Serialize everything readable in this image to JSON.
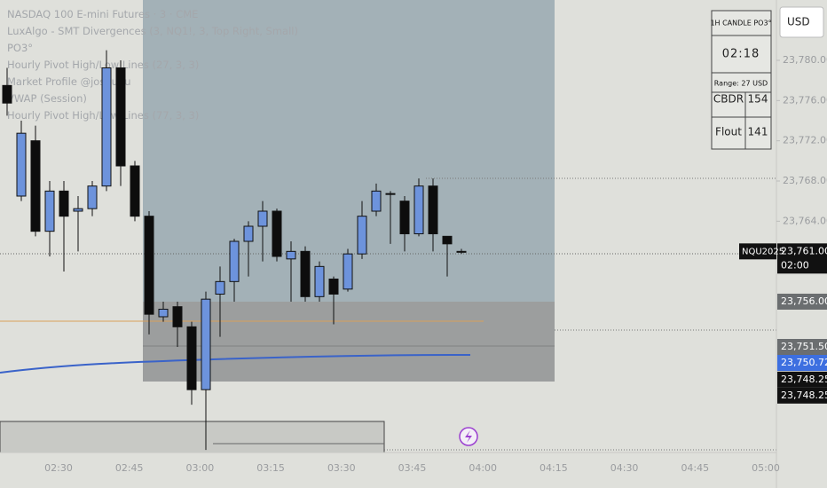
{
  "chart_data": {
    "type": "candlestick",
    "legend_lines": [
      "NASDAQ 100 E-mini Futures · 3 · CME",
      "LuxAlgo - SMT Divergences (3, NQ1!, 3, Top Right, Small)",
      "PO3°",
      "Hourly Pivot High/Low Lines (27, 3, 3)",
      "Market Profile @joshuuu",
      "VWAP (Session)",
      "Hourly Pivot High/Low Lines (77, 3, 3)"
    ],
    "open": [
      23777.5,
      23766.5,
      23772,
      23763,
      23767,
      23765,
      23765.25,
      23767.5,
      23779.25,
      23769.5,
      23764.5,
      23754.5,
      23755.5,
      23753.5,
      23747.25,
      23756.75,
      23758,
      23762,
      23763.5,
      23765,
      23760.25,
      23761,
      23756.5,
      23758.25,
      23757.25,
      23760.75,
      23765,
      23766.75,
      23766,
      23762.75,
      23767.5,
      23762.5,
      23761
    ],
    "high": [
      23779.25,
      23774,
      23773.5,
      23768,
      23768,
      23766.5,
      23768,
      23781,
      23780,
      23770,
      23765,
      23756,
      23756,
      23754,
      23757,
      23759.5,
      23762.25,
      23764,
      23766,
      23765.25,
      23762,
      23761.5,
      23760,
      23758.5,
      23761.25,
      23766,
      23767.75,
      23767,
      23766.5,
      23768.25,
      23768.25,
      23762.5,
      23761.25
    ],
    "low": [
      23774.5,
      23766,
      23762.5,
      23760.5,
      23759,
      23761,
      23764.5,
      23767,
      23767.5,
      23764,
      23752.75,
      23754,
      23751.5,
      23745.75,
      23741.25,
      23752.5,
      23756,
      23758.5,
      23760,
      23760,
      23756,
      23756,
      23756,
      23753.75,
      23757,
      23760.25,
      23764.5,
      23761.75,
      23761,
      23762.5,
      23761,
      23758.5,
      23760.75
    ],
    "close": [
      23775.75,
      23772.75,
      23763,
      23767,
      23764.5,
      23765.25,
      23767.5,
      23779.25,
      23769.5,
      23764.5,
      23754.75,
      23755.25,
      23753.5,
      23747.25,
      23756.25,
      23758,
      23762,
      23763.5,
      23765,
      23760.5,
      23761,
      23756.5,
      23759.5,
      23756.75,
      23760.75,
      23764.5,
      23767,
      23766.75,
      23762.75,
      23767.5,
      23762.75,
      23761.75,
      23761
    ],
    "up_color": "#6d93dc",
    "down_color": "#0d0d0d",
    "ylim": [
      23786,
      23741
    ],
    "yticks": [
      {
        "value": 23780,
        "label": "23,780.00"
      },
      {
        "value": 23776,
        "label": "23,776.00"
      },
      {
        "value": 23772,
        "label": "23,772.00"
      },
      {
        "value": 23768,
        "label": "23,768.00"
      },
      {
        "value": 23764,
        "label": "23,764.00"
      }
    ],
    "xtick_labels": [
      "02:30",
      "02:45",
      "03:00",
      "03:15",
      "03:30",
      "03:45",
      "04:00",
      "04:15",
      "04:30",
      "04:45",
      "05:00"
    ],
    "symbol_label": "NQU2025",
    "countdown": "02:00",
    "price_labels": [
      {
        "value": 23761,
        "label": "23,761.00"
      },
      {
        "value": 23756,
        "label": "23,756.00"
      },
      {
        "value": 23751.5,
        "label": "23,751.50"
      },
      {
        "value": 23750.72,
        "label": "23,750.72"
      },
      {
        "value": 23748.25,
        "label": "23,748.25"
      },
      {
        "value": 23748.25,
        "label": "23,748.25"
      }
    ],
    "currency_button": "USD",
    "po3_table": {
      "title": "1H CANDLE PO3°",
      "timer": "02:18",
      "range": "Range: 27 USD",
      "rows": [
        [
          "CBDR",
          "154"
        ],
        [
          "Flout",
          "141"
        ]
      ]
    }
  }
}
